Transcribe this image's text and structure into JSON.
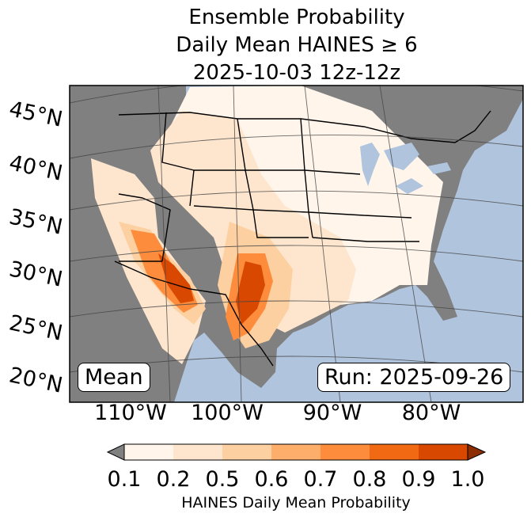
{
  "title": {
    "line1": "Ensemble Probability",
    "line2": "Daily Mean HAINES ≥ 6",
    "line3": "2025-10-03 12z-12z"
  },
  "map": {
    "ocean_color": "#b0c4de",
    "land_missing_color": "#808080",
    "lat_labels": [
      "45°N",
      "40°N",
      "35°N",
      "30°N",
      "25°N",
      "20°N"
    ],
    "lon_labels": [
      "110°W",
      "100°W",
      "90°W",
      "80°W"
    ]
  },
  "annotations": {
    "left_box": "Mean",
    "right_box": "Run: 2025-09-26"
  },
  "colorbar": {
    "ticks": [
      "0.1",
      "0.2",
      "0.5",
      "0.6",
      "0.7",
      "0.8",
      "0.9",
      "1.0"
    ],
    "colors": [
      "#fff5eb",
      "#fee6ce",
      "#fdd0a2",
      "#fdae6b",
      "#fd8d3c",
      "#f16913",
      "#d94801"
    ],
    "under_color": "#808080",
    "over_color": "#8c2d04",
    "label": "HAINES Daily Mean Probability"
  }
}
